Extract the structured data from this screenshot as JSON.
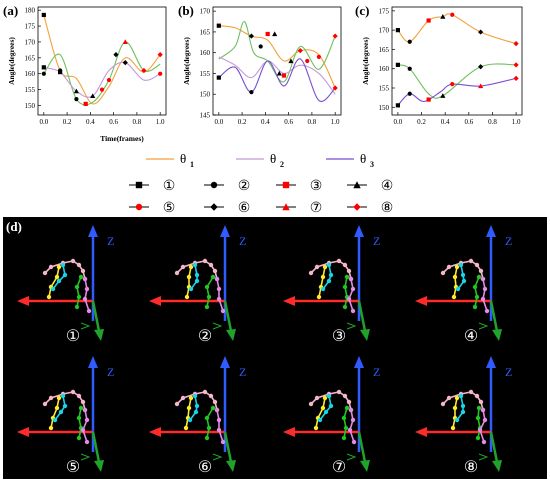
{
  "figure": {
    "labels": {
      "a": "(a)",
      "b": "(b)",
      "c": "(c)",
      "d": "(d)"
    }
  },
  "theta_legend": [
    {
      "symbol": "θ",
      "sub": "1",
      "color": "#f4a13b"
    },
    {
      "symbol": "θ",
      "sub": "2",
      "color": "#c49ad8"
    },
    {
      "symbol": "θ",
      "sub": "3",
      "color": "#7a4fd0"
    }
  ],
  "marker_legend": [
    {
      "label": "①",
      "marker": "square",
      "color": "#000000"
    },
    {
      "label": "②",
      "marker": "circle",
      "color": "#000000"
    },
    {
      "label": "③",
      "marker": "square",
      "color": "#ff0000"
    },
    {
      "label": "④",
      "marker": "triangle",
      "color": "#000000"
    },
    {
      "label": "⑤",
      "marker": "circle",
      "color": "#ff0000"
    },
    {
      "label": "⑥",
      "marker": "diamond",
      "color": "#000000"
    },
    {
      "label": "⑦",
      "marker": "triangle",
      "color": "#ff0000"
    },
    {
      "label": "⑧",
      "marker": "diamond",
      "color": "#ff0000"
    }
  ],
  "chart_data": [
    {
      "id": "a",
      "type": "line",
      "xlabel": "Time(frames)",
      "ylabel": "Angle(degrees)",
      "xlim": [
        -0.05,
        1.05
      ],
      "ylim": [
        147,
        181
      ],
      "xticks": [
        "0.0",
        "0.2",
        "0.4",
        "0.6",
        "0.8",
        "1.0"
      ],
      "yticks": [
        150,
        155,
        160,
        165,
        170,
        175,
        180
      ],
      "grid": false,
      "series": [
        {
          "color": "#f4a13b",
          "points": [
            [
              0.0,
              178.5
            ],
            [
              0.14,
              161
            ],
            [
              0.28,
              158.5
            ],
            [
              0.42,
              150.5
            ],
            [
              0.56,
              156
            ],
            [
              0.7,
              165
            ],
            [
              0.86,
              160.5
            ],
            [
              1.0,
              166
            ]
          ]
        },
        {
          "color": "#6fbf5d",
          "points": [
            [
              0.0,
              160
            ],
            [
              0.14,
              166
            ],
            [
              0.28,
              152
            ],
            [
              0.42,
              151
            ],
            [
              0.56,
              158
            ],
            [
              0.7,
              170
            ],
            [
              0.86,
              161
            ],
            [
              1.0,
              163
            ]
          ]
        },
        {
          "color": "#c49ad8",
          "points": [
            [
              0.0,
              162
            ],
            [
              0.14,
              160.5
            ],
            [
              0.28,
              154.5
            ],
            [
              0.42,
              153
            ],
            [
              0.56,
              161
            ],
            [
              0.7,
              163.5
            ],
            [
              0.86,
              158
            ],
            [
              1.0,
              160
            ]
          ]
        }
      ],
      "markers": [
        {
          "x": 0.0,
          "y": 178.5,
          "marker": "square",
          "color": "#000000"
        },
        {
          "x": 0.0,
          "y": 162,
          "marker": "square",
          "color": "#000000"
        },
        {
          "x": 0.0,
          "y": 160,
          "marker": "circle",
          "color": "#000000"
        },
        {
          "x": 0.14,
          "y": 161,
          "marker": "circle",
          "color": "#000000"
        },
        {
          "x": 0.14,
          "y": 160.5,
          "marker": "square",
          "color": "#000000"
        },
        {
          "x": 0.28,
          "y": 152,
          "marker": "circle",
          "color": "#000000"
        },
        {
          "x": 0.28,
          "y": 154.5,
          "marker": "triangle",
          "color": "#000000"
        },
        {
          "x": 0.36,
          "y": 150.5,
          "marker": "square",
          "color": "#ff0000"
        },
        {
          "x": 0.42,
          "y": 153,
          "marker": "triangle",
          "color": "#000000"
        },
        {
          "x": 0.5,
          "y": 155,
          "marker": "circle",
          "color": "#ff0000"
        },
        {
          "x": 0.56,
          "y": 158,
          "marker": "circle",
          "color": "#ff0000"
        },
        {
          "x": 0.62,
          "y": 166,
          "marker": "diamond",
          "color": "#000000"
        },
        {
          "x": 0.7,
          "y": 170,
          "marker": "triangle",
          "color": "#ff0000"
        },
        {
          "x": 0.7,
          "y": 163.5,
          "marker": "diamond",
          "color": "#000000"
        },
        {
          "x": 0.86,
          "y": 161,
          "marker": "diamond",
          "color": "#ff0000"
        },
        {
          "x": 1.0,
          "y": 166,
          "marker": "diamond",
          "color": "#ff0000"
        },
        {
          "x": 1.0,
          "y": 160,
          "marker": "circle",
          "color": "#ff0000"
        }
      ]
    },
    {
      "id": "b",
      "type": "line",
      "xlabel": "",
      "ylabel": "Angle(degrees)",
      "xlim": [
        -0.05,
        1.05
      ],
      "ylim": [
        145,
        171
      ],
      "xticks": [
        "0.0",
        "0.2",
        "0.4",
        "0.6",
        "0.8",
        "1.0"
      ],
      "yticks": [
        145,
        150,
        155,
        160,
        165,
        170
      ],
      "grid": false,
      "series": [
        {
          "color": "#f4a13b",
          "points": [
            [
              0.0,
              166.5
            ],
            [
              0.14,
              166
            ],
            [
              0.28,
              164
            ],
            [
              0.42,
              163
            ],
            [
              0.56,
              158
            ],
            [
              0.7,
              160.5
            ],
            [
              0.86,
              159.5
            ],
            [
              1.0,
              151.5
            ]
          ]
        },
        {
          "color": "#6fbf5d",
          "points": [
            [
              0.0,
              158.5
            ],
            [
              0.14,
              161.5
            ],
            [
              0.22,
              167.5
            ],
            [
              0.3,
              160
            ],
            [
              0.42,
              158
            ],
            [
              0.56,
              153
            ],
            [
              0.7,
              161.5
            ],
            [
              0.86,
              156
            ],
            [
              1.0,
              164
            ]
          ]
        },
        {
          "color": "#c49ad8",
          "points": [
            [
              0.0,
              159
            ],
            [
              0.14,
              157
            ],
            [
              0.28,
              154
            ],
            [
              0.42,
              158
            ],
            [
              0.56,
              155
            ],
            [
              0.7,
              157
            ],
            [
              0.86,
              155
            ],
            [
              1.0,
              150
            ]
          ]
        },
        {
          "color": "#7a4fd0",
          "points": [
            [
              0.0,
              154
            ],
            [
              0.14,
              156.5
            ],
            [
              0.28,
              150.5
            ],
            [
              0.42,
              158
            ],
            [
              0.56,
              152
            ],
            [
              0.7,
              158.5
            ],
            [
              0.86,
              148.5
            ],
            [
              1.0,
              151.5
            ]
          ]
        }
      ],
      "markers": [
        {
          "x": 0.0,
          "y": 166.5,
          "marker": "square",
          "color": "#000000"
        },
        {
          "x": 0.0,
          "y": 154,
          "marker": "square",
          "color": "#000000"
        },
        {
          "x": 0.28,
          "y": 164,
          "marker": "diamond",
          "color": "#000000"
        },
        {
          "x": 0.28,
          "y": 150.5,
          "marker": "circle",
          "color": "#000000"
        },
        {
          "x": 0.36,
          "y": 161.5,
          "marker": "circle",
          "color": "#000000"
        },
        {
          "x": 0.42,
          "y": 164.5,
          "marker": "square",
          "color": "#ff0000"
        },
        {
          "x": 0.48,
          "y": 164.5,
          "marker": "triangle",
          "color": "#000000"
        },
        {
          "x": 0.52,
          "y": 155,
          "marker": "triangle",
          "color": "#000000"
        },
        {
          "x": 0.56,
          "y": 154.5,
          "marker": "square",
          "color": "#ff0000"
        },
        {
          "x": 0.62,
          "y": 158,
          "marker": "triangle",
          "color": "#000000"
        },
        {
          "x": 0.7,
          "y": 160.5,
          "marker": "diamond",
          "color": "#ff0000"
        },
        {
          "x": 0.76,
          "y": 158,
          "marker": "circle",
          "color": "#ff0000"
        },
        {
          "x": 0.86,
          "y": 159,
          "marker": "circle",
          "color": "#ff0000"
        },
        {
          "x": 1.0,
          "y": 164,
          "marker": "diamond",
          "color": "#ff0000"
        },
        {
          "x": 1.0,
          "y": 151.5,
          "marker": "diamond",
          "color": "#ff0000"
        }
      ]
    },
    {
      "id": "c",
      "type": "line",
      "xlabel": "",
      "ylabel": "Angle(degrees)",
      "xlim": [
        -0.05,
        1.05
      ],
      "ylim": [
        148,
        176
      ],
      "xticks": [
        "0.0",
        "0.2",
        "0.4",
        "0.6",
        "0.8",
        "1.0"
      ],
      "yticks": [
        150,
        155,
        160,
        165,
        170,
        175
      ],
      "grid": false,
      "series": [
        {
          "color": "#f4a13b",
          "points": [
            [
              0.0,
              170
            ],
            [
              0.1,
              167
            ],
            [
              0.26,
              172.5
            ],
            [
              0.38,
              173.5
            ],
            [
              0.46,
              174
            ],
            [
              0.7,
              169.5
            ],
            [
              1.0,
              166.5
            ]
          ]
        },
        {
          "color": "#6fbf5d",
          "points": [
            [
              0.0,
              161
            ],
            [
              0.1,
              160
            ],
            [
              0.26,
              153.5
            ],
            [
              0.38,
              153
            ],
            [
              0.7,
              160.5
            ],
            [
              1.0,
              161
            ]
          ]
        },
        {
          "color": "#7a4fd0",
          "points": [
            [
              0.0,
              150.5
            ],
            [
              0.1,
              153.5
            ],
            [
              0.22,
              151.5
            ],
            [
              0.36,
              154
            ],
            [
              0.46,
              156
            ],
            [
              0.7,
              155.5
            ],
            [
              1.0,
              157.5
            ]
          ]
        }
      ],
      "markers": [
        {
          "x": 0.0,
          "y": 170,
          "marker": "square",
          "color": "#000000"
        },
        {
          "x": 0.0,
          "y": 161,
          "marker": "square",
          "color": "#000000"
        },
        {
          "x": 0.0,
          "y": 150.5,
          "marker": "square",
          "color": "#000000"
        },
        {
          "x": 0.1,
          "y": 167,
          "marker": "circle",
          "color": "#000000"
        },
        {
          "x": 0.1,
          "y": 160,
          "marker": "circle",
          "color": "#000000"
        },
        {
          "x": 0.1,
          "y": 153.5,
          "marker": "circle",
          "color": "#000000"
        },
        {
          "x": 0.26,
          "y": 172.5,
          "marker": "square",
          "color": "#ff0000"
        },
        {
          "x": 0.26,
          "y": 152,
          "marker": "square",
          "color": "#ff0000"
        },
        {
          "x": 0.38,
          "y": 173.5,
          "marker": "triangle",
          "color": "#000000"
        },
        {
          "x": 0.38,
          "y": 153,
          "marker": "triangle",
          "color": "#000000"
        },
        {
          "x": 0.46,
          "y": 174,
          "marker": "circle",
          "color": "#ff0000"
        },
        {
          "x": 0.46,
          "y": 156,
          "marker": "circle",
          "color": "#ff0000"
        },
        {
          "x": 0.7,
          "y": 169.5,
          "marker": "diamond",
          "color": "#000000"
        },
        {
          "x": 0.7,
          "y": 160.5,
          "marker": "diamond",
          "color": "#000000"
        },
        {
          "x": 0.7,
          "y": 155.5,
          "marker": "triangle",
          "color": "#ff0000"
        },
        {
          "x": 1.0,
          "y": 166.5,
          "marker": "diamond",
          "color": "#ff0000"
        },
        {
          "x": 1.0,
          "y": 161,
          "marker": "diamond",
          "color": "#ff0000"
        },
        {
          "x": 1.0,
          "y": 157.5,
          "marker": "diamond",
          "color": "#ff0000"
        }
      ]
    }
  ],
  "skeleton_panel": {
    "background": "#000000",
    "frames": [
      {
        "label": "①"
      },
      {
        "label": "②"
      },
      {
        "label": "③"
      },
      {
        "label": "④"
      },
      {
        "label": "⑤"
      },
      {
        "label": "⑥"
      },
      {
        "label": "⑦"
      },
      {
        "label": "⑧"
      }
    ],
    "axis_label": "Z",
    "colors": {
      "z_axis": "#2f5bff",
      "x_axis": "#ff2a2a",
      "y_axis": "#1fa32b",
      "spine": "#f4b6c8",
      "arm_left": "#ffeb2a",
      "arm_right": "#19d4e6",
      "leg_left": "#22c522",
      "leg_right": "#e38be6"
    }
  }
}
